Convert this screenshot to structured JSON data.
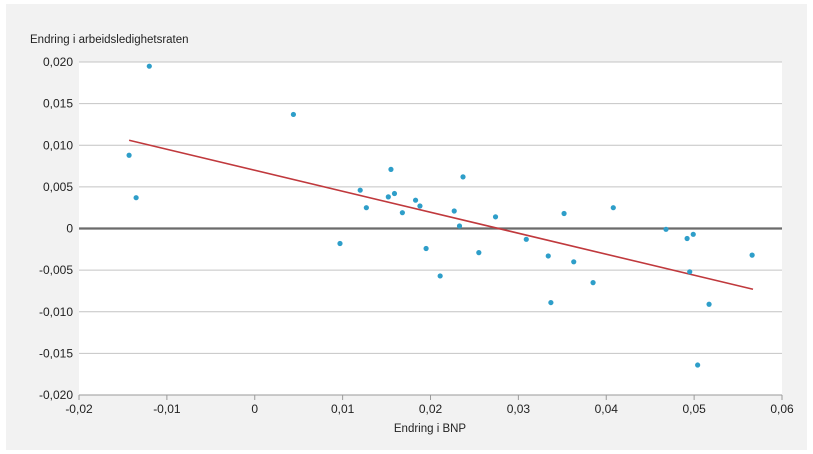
{
  "chart_data": {
    "type": "scatter",
    "title": "",
    "ylabel": "Endring i arbeidsledighetsraten",
    "xlabel": "Endring i BNP",
    "xlim": [
      -0.02,
      0.06
    ],
    "ylim": [
      -0.02,
      0.02
    ],
    "x_ticks": [
      -0.02,
      -0.01,
      0,
      0.01,
      0.02,
      0.03,
      0.04,
      0.05,
      0.06
    ],
    "x_tick_labels": [
      "-0,02",
      "-0,01",
      "0",
      "0,01",
      "0,02",
      "0,03",
      "0,04",
      "0,05",
      "0,06"
    ],
    "y_ticks": [
      0.02,
      0.015,
      0.01,
      0.005,
      0,
      -0.005,
      -0.01,
      -0.015,
      -0.02
    ],
    "y_tick_labels": [
      "0,020",
      "0,015",
      "0,010",
      "0,005",
      "0",
      "-0,005",
      "-0,010",
      "-0,015",
      "-0,020"
    ],
    "grid": "horizontal",
    "points": [
      {
        "x": -0.0143,
        "y": 0.0088
      },
      {
        "x": -0.0135,
        "y": 0.0037
      },
      {
        "x": -0.012,
        "y": 0.0195
      },
      {
        "x": 0.0044,
        "y": 0.0137
      },
      {
        "x": 0.0097,
        "y": -0.0018
      },
      {
        "x": 0.012,
        "y": 0.0046
      },
      {
        "x": 0.0127,
        "y": 0.0025
      },
      {
        "x": 0.0152,
        "y": 0.0038
      },
      {
        "x": 0.0155,
        "y": 0.0071
      },
      {
        "x": 0.0159,
        "y": 0.0042
      },
      {
        "x": 0.0168,
        "y": 0.0019
      },
      {
        "x": 0.0183,
        "y": 0.0034
      },
      {
        "x": 0.0188,
        "y": 0.0027
      },
      {
        "x": 0.0195,
        "y": -0.0024
      },
      {
        "x": 0.0211,
        "y": -0.0057
      },
      {
        "x": 0.0227,
        "y": 0.0021
      },
      {
        "x": 0.0233,
        "y": 0.0003
      },
      {
        "x": 0.0237,
        "y": 0.0062
      },
      {
        "x": 0.0255,
        "y": -0.0029
      },
      {
        "x": 0.0274,
        "y": 0.0014
      },
      {
        "x": 0.0309,
        "y": -0.0013
      },
      {
        "x": 0.0334,
        "y": -0.0033
      },
      {
        "x": 0.0337,
        "y": -0.0089
      },
      {
        "x": 0.0352,
        "y": 0.0018
      },
      {
        "x": 0.0363,
        "y": -0.004
      },
      {
        "x": 0.0385,
        "y": -0.0065
      },
      {
        "x": 0.0408,
        "y": 0.0025
      },
      {
        "x": 0.0468,
        "y": -0.0001
      },
      {
        "x": 0.0492,
        "y": -0.0012
      },
      {
        "x": 0.0495,
        "y": -0.0052
      },
      {
        "x": 0.0499,
        "y": -0.0007
      },
      {
        "x": 0.0504,
        "y": -0.0164
      },
      {
        "x": 0.0517,
        "y": -0.0091
      },
      {
        "x": 0.0566,
        "y": -0.0032
      }
    ],
    "trendline": {
      "x": [
        -0.0143,
        0.0567
      ],
      "y": [
        0.0106,
        -0.0073
      ]
    },
    "colors": {
      "points": "#2e9ec9",
      "trendline": "#c0393d",
      "zero_line": "#6b6b6b",
      "grid": "#c4c4c4",
      "background": "#f2f2f2",
      "plot_area": "#ffffff"
    }
  }
}
